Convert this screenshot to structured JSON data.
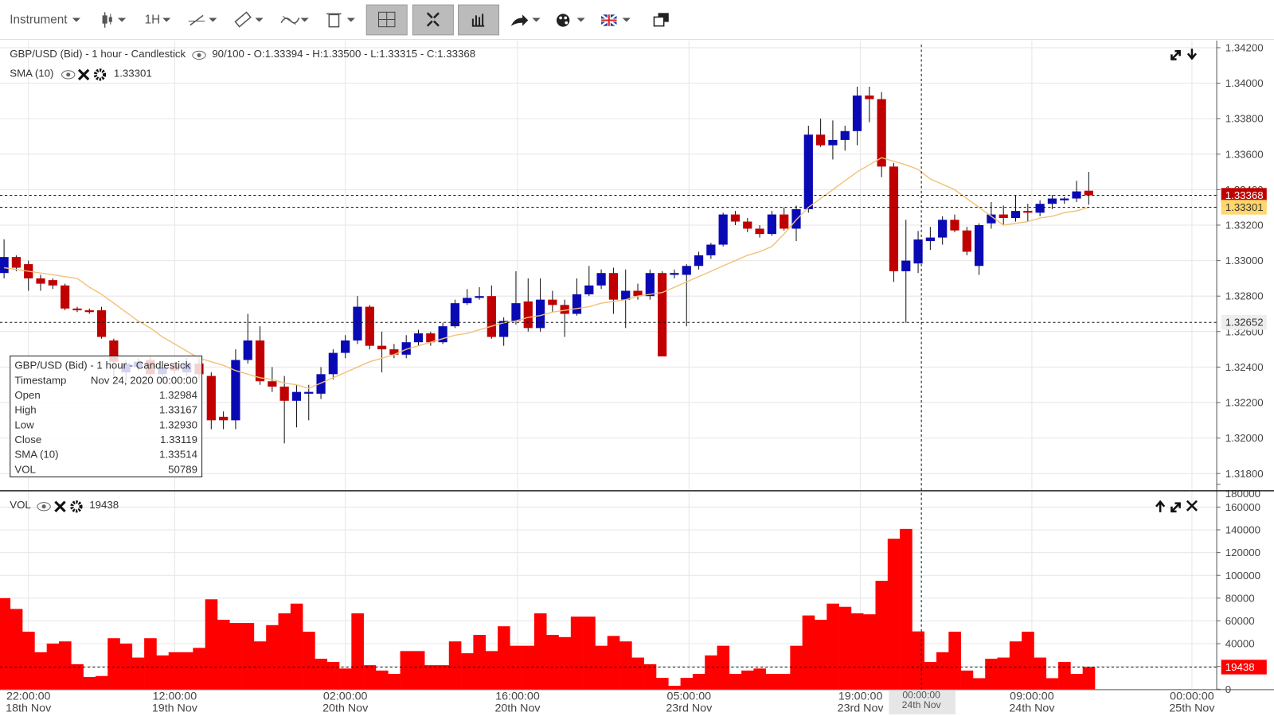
{
  "toolbar": {
    "instrument": "Instrument",
    "interval": "1H"
  },
  "chart_data": {
    "type": "candlestick",
    "title": "GBP/USD (Bid) - 1 hour - Candlestick",
    "header_info": "90/100 - O:1.33394 - H:1.33500 - L:1.33315 - C:1.33368",
    "up_color": "#0a0ab4",
    "down_color": "#c00000",
    "open": [
      1.3293,
      1.3302,
      1.3298,
      1.329,
      1.3289,
      1.3286,
      1.3273,
      1.3272,
      1.3272,
      1.3255,
      1.3237,
      1.324,
      1.3244,
      1.3236,
      1.3241,
      1.3237,
      1.3242,
      1.3235,
      1.3212,
      1.321,
      1.3244,
      1.3255,
      1.3232,
      1.3229,
      1.3221,
      1.3225,
      1.3225,
      1.3236,
      1.3248,
      1.3255,
      1.3274,
      1.3252,
      1.325,
      1.3247,
      1.3254,
      1.3259,
      1.3254,
      1.3263,
      1.3276,
      1.3279,
      1.328,
      1.3257,
      1.3266,
      1.3277,
      1.3262,
      1.3278,
      1.3275,
      1.327,
      1.3281,
      1.3286,
      1.3293,
      1.3278,
      1.3283,
      1.328,
      1.3293,
      1.3292,
      1.3292,
      1.3297,
      1.3303,
      1.3309,
      1.3326,
      1.3322,
      1.3318,
      1.3315,
      1.3326,
      1.3318,
      1.3329,
      1.3371,
      1.3365,
      1.3368,
      1.3373,
      1.3393,
      1.3391,
      1.3353,
      1.3294,
      1.32984,
      1.3311,
      1.3313,
      1.3323,
      1.3317,
      1.3297,
      1.3321,
      1.3326,
      1.3324,
      1.3328,
      1.3327,
      1.3332,
      1.3334,
      1.3335,
      1.33394
    ],
    "high": [
      1.3312,
      1.3303,
      1.33,
      1.3292,
      1.329,
      1.3287,
      1.3274,
      1.3273,
      1.3274,
      1.3256,
      1.3244,
      1.3245,
      1.3246,
      1.3242,
      1.3243,
      1.3245,
      1.3246,
      1.3237,
      1.3215,
      1.325,
      1.327,
      1.3263,
      1.324,
      1.3235,
      1.323,
      1.323,
      1.324,
      1.325,
      1.3258,
      1.328,
      1.3275,
      1.326,
      1.3253,
      1.3258,
      1.3261,
      1.326,
      1.3265,
      1.3278,
      1.3284,
      1.3285,
      1.3286,
      1.3268,
      1.3294,
      1.329,
      1.329,
      1.3283,
      1.3278,
      1.329,
      1.3297,
      1.3295,
      1.3296,
      1.3295,
      1.3287,
      1.3295,
      1.3294,
      1.3295,
      1.3298,
      1.3305,
      1.331,
      1.3327,
      1.3328,
      1.3324,
      1.332,
      1.3328,
      1.333,
      1.3331,
      1.3376,
      1.338,
      1.3379,
      1.3376,
      1.3398,
      1.3398,
      1.3395,
      1.3355,
      1.3323,
      1.33167,
      1.3319,
      1.3325,
      1.3326,
      1.3319,
      1.3321,
      1.3333,
      1.3331,
      1.3337,
      1.3332,
      1.3334,
      1.3337,
      1.3336,
      1.3345,
      1.335
    ],
    "low": [
      1.329,
      1.3294,
      1.3283,
      1.3283,
      1.3284,
      1.3272,
      1.3271,
      1.327,
      1.3256,
      1.3235,
      1.3232,
      1.3238,
      1.3234,
      1.3233,
      1.3236,
      1.3235,
      1.3233,
      1.3205,
      1.3205,
      1.3205,
      1.3242,
      1.323,
      1.3226,
      1.3197,
      1.3206,
      1.321,
      1.3222,
      1.3233,
      1.3245,
      1.3253,
      1.325,
      1.3237,
      1.3245,
      1.3245,
      1.3252,
      1.3252,
      1.3253,
      1.3262,
      1.3275,
      1.3278,
      1.3256,
      1.3252,
      1.3264,
      1.326,
      1.326,
      1.3271,
      1.3257,
      1.3269,
      1.328,
      1.3284,
      1.327,
      1.3262,
      1.3278,
      1.3278,
      1.3246,
      1.329,
      1.3263,
      1.3295,
      1.3301,
      1.3308,
      1.332,
      1.3316,
      1.3313,
      1.3314,
      1.3317,
      1.3311,
      1.3327,
      1.3364,
      1.3357,
      1.3362,
      1.3365,
      1.3378,
      1.3347,
      1.3288,
      1.3265,
      1.3293,
      1.3306,
      1.3309,
      1.3316,
      1.3303,
      1.3292,
      1.3318,
      1.332,
      1.3322,
      1.3322,
      1.3325,
      1.3329,
      1.3332,
      1.3333,
      1.33315
    ],
    "close": [
      1.3302,
      1.3296,
      1.329,
      1.3287,
      1.3286,
      1.3273,
      1.3272,
      1.3271,
      1.3257,
      1.3243,
      1.3242,
      1.3243,
      1.3236,
      1.324,
      1.3238,
      1.3242,
      1.3236,
      1.321,
      1.321,
      1.3244,
      1.3255,
      1.3232,
      1.3229,
      1.3221,
      1.3226,
      1.3226,
      1.3236,
      1.3248,
      1.3255,
      1.3274,
      1.3252,
      1.325,
      1.3247,
      1.3254,
      1.3259,
      1.3254,
      1.3263,
      1.3276,
      1.3279,
      1.328,
      1.3257,
      1.3266,
      1.3276,
      1.3262,
      1.3278,
      1.3275,
      1.327,
      1.3281,
      1.3286,
      1.3293,
      1.3278,
      1.3283,
      1.328,
      1.3293,
      1.3246,
      1.3293,
      1.3297,
      1.3303,
      1.3309,
      1.3326,
      1.3322,
      1.3318,
      1.3315,
      1.3326,
      1.3318,
      1.3329,
      1.3371,
      1.3365,
      1.3368,
      1.3373,
      1.3393,
      1.3391,
      1.3353,
      1.3294,
      1.33,
      1.33119,
      1.3313,
      1.3323,
      1.3317,
      1.3305,
      1.332,
      1.3326,
      1.3324,
      1.3328,
      1.3327,
      1.3332,
      1.3335,
      1.3335,
      1.3339,
      1.33368
    ],
    "ylim": [
      1.3171,
      1.3424
    ],
    "yticks": [
      {
        "value": 1.342,
        "label": "1.34200"
      },
      {
        "value": 1.34,
        "label": "1.34000"
      },
      {
        "value": 1.338,
        "label": "1.33800"
      },
      {
        "value": 1.336,
        "label": "1.33600"
      },
      {
        "value": 1.334,
        "label": "1.33400"
      },
      {
        "value": 1.332,
        "label": "1.33200"
      },
      {
        "value": 1.33,
        "label": "1.33000"
      },
      {
        "value": 1.328,
        "label": "1.32800"
      },
      {
        "value": 1.326,
        "label": "1.32600"
      },
      {
        "value": 1.324,
        "label": "1.32400"
      },
      {
        "value": 1.322,
        "label": "1.32200"
      },
      {
        "value": 1.32,
        "label": "1.32000"
      },
      {
        "value": 1.318,
        "label": "1.31800"
      }
    ],
    "grid": true,
    "last_price": {
      "value": 1.33368,
      "label": "1.33368",
      "color": "#c00000"
    },
    "sma": {
      "name": "SMA (10)",
      "value": 1.33301,
      "label": "1.33301",
      "color": "#f2c27a",
      "marker_color": "#ffd76a",
      "values": [
        1.3296,
        1.3295,
        1.3294,
        1.3293,
        1.3292,
        1.3291,
        1.329,
        1.3285,
        1.3281,
        1.3276,
        1.3271,
        1.3266,
        1.3262,
        1.3257,
        1.3253,
        1.3249,
        1.3245,
        1.3243,
        1.3241,
        1.3238,
        1.3236,
        1.3234,
        1.3233,
        1.3231,
        1.323,
        1.3228,
        1.3231,
        1.3234,
        1.3237,
        1.324,
        1.3243,
        1.3245,
        1.3247,
        1.325,
        1.3252,
        1.3254,
        1.3256,
        1.3258,
        1.3259,
        1.3261,
        1.3263,
        1.3265,
        1.3266,
        1.3268,
        1.3269,
        1.3271,
        1.3272,
        1.3273,
        1.3274,
        1.3276,
        1.3277,
        1.3278,
        1.328,
        1.3281,
        1.3282,
        1.3285,
        1.3288,
        1.3291,
        1.3294,
        1.3297,
        1.33,
        1.3303,
        1.3305,
        1.3308,
        1.3315,
        1.3323,
        1.333,
        1.3335,
        1.334,
        1.3345,
        1.335,
        1.3354,
        1.3358,
        1.3356,
        1.3354,
        1.33514,
        1.3346,
        1.3343,
        1.334,
        1.3335,
        1.333,
        1.3325,
        1.332,
        1.3321,
        1.3322,
        1.3324,
        1.3325,
        1.3327,
        1.3328,
        1.33301
      ]
    },
    "crosshair": {
      "price": 1.32652,
      "price_label": "1.32652",
      "time": "00:00:00",
      "date": "24th Nov"
    },
    "tooltip": [
      [
        "GBP/USD (Bid) - 1 hour - Candlestick"
      ],
      [
        "Timestamp",
        "Nov 24, 2020 00:00:00"
      ],
      [
        "Open",
        "1.32984"
      ],
      [
        "High",
        "1.33167"
      ],
      [
        "Low",
        "1.32930"
      ],
      [
        "Close",
        "1.33119"
      ],
      [
        "SMA (10)",
        "1.33514"
      ],
      [
        "VOL",
        "50789"
      ]
    ],
    "time_axis": [
      [
        "22:00:00",
        "18th Nov"
      ],
      [
        "12:00:00",
        "19th Nov"
      ],
      [
        "02:00:00",
        "20th Nov"
      ],
      [
        "16:00:00",
        "20th Nov"
      ],
      [
        "05:00:00",
        "23rd Nov"
      ],
      [
        "19:00:00",
        "23rd Nov"
      ],
      [
        "09:00:00",
        "24th Nov"
      ],
      [
        "00:00:00",
        "25th Nov"
      ]
    ],
    "volume": {
      "name": "VOL",
      "label": "19438",
      "last": 19438,
      "color": "#ff0000",
      "values": [
        80000,
        70500,
        50500,
        32500,
        40100,
        42000,
        22000,
        10700,
        11600,
        44800,
        40100,
        27800,
        44800,
        29700,
        32500,
        32500,
        36300,
        79000,
        61000,
        58200,
        58200,
        42000,
        56300,
        66700,
        75200,
        50500,
        26800,
        24000,
        18200,
        66700,
        21100,
        16400,
        13500,
        33500,
        33500,
        21100,
        21100,
        42000,
        31600,
        47700,
        33500,
        55300,
        38200,
        38200,
        66700,
        47700,
        45800,
        63800,
        63800,
        38200,
        46800,
        42000,
        27800,
        22000,
        10000,
        3000,
        10000,
        13500,
        29700,
        38200,
        13500,
        16400,
        18200,
        13500,
        13500,
        38200,
        64800,
        61000,
        75200,
        72400,
        66700,
        65800,
        95200,
        132200,
        140800,
        50789,
        24000,
        32500,
        50500,
        16400,
        9700,
        26800,
        27800,
        42000,
        50500,
        27800,
        9700,
        24000,
        13500,
        19438
      ],
      "ylim": [
        0,
        174000
      ],
      "yticks": [
        0,
        20000,
        40000,
        60000,
        80000,
        100000,
        120000,
        140000,
        160000,
        180000
      ]
    }
  }
}
